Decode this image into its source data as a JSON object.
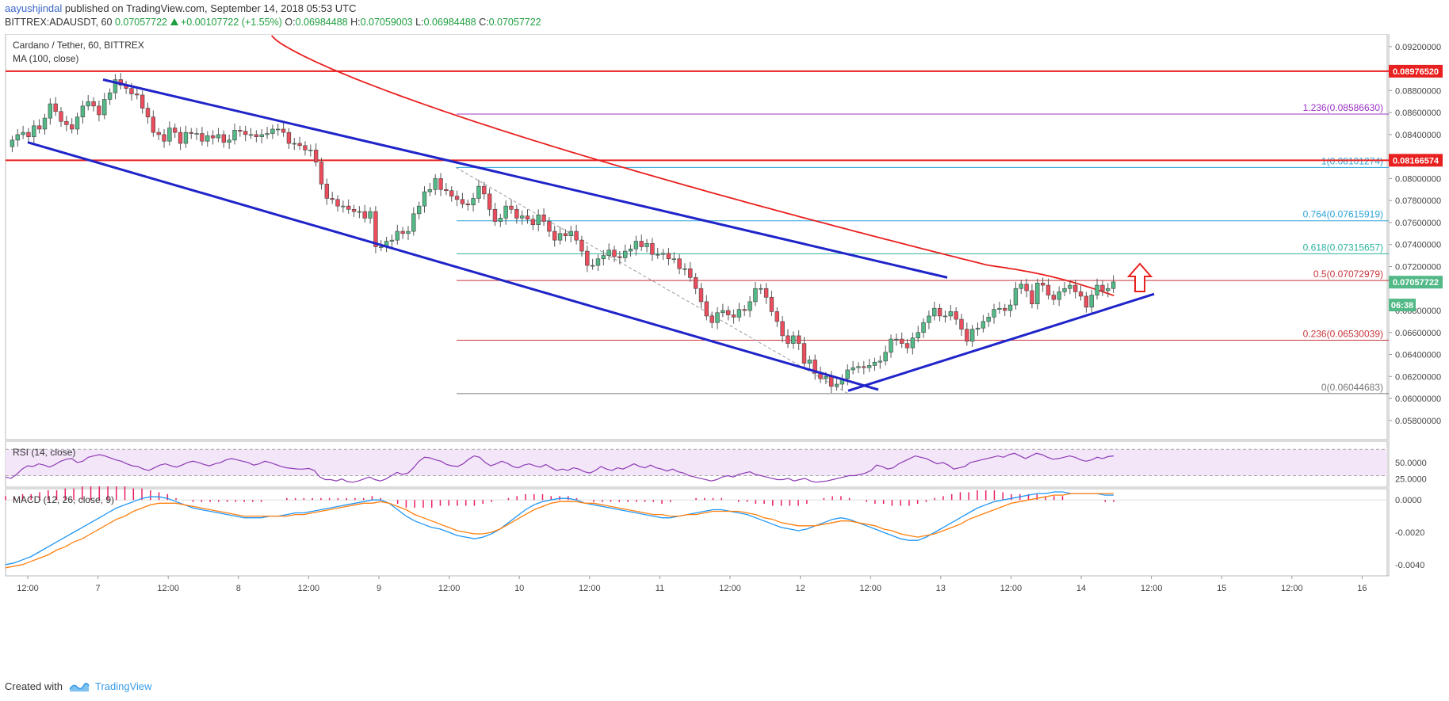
{
  "header": {
    "user": "aayushjindal",
    "published": "published on TradingView.com, September 14, 2018 05:53 UTC",
    "symbol": "BITTREX:ADAUSDT, 60",
    "last": "0.07057722",
    "change": "+0.00107722 (+1.55%)",
    "o_label": "O:",
    "o_val": "0.06984488",
    "h_label": "H:",
    "h_val": "0.07059003",
    "l_label": "L:",
    "l_val": "0.06984488",
    "c_label": "C:",
    "c_val": "0.07057722"
  },
  "footer": {
    "created": "Created with",
    "brand": "TradingView"
  },
  "colors": {
    "up": "#53b987",
    "down": "#eb4d5c",
    "ma": "#e8201f",
    "channel": "#1f24c9",
    "resistance": "#e8201f",
    "fib_purple": "#9b34c4",
    "fib_blue": "#2ea3d9",
    "fib_teal": "#2bb3a0",
    "fib_red": "#c8353b",
    "fib_gray": "#777777",
    "rsi_fill": "#f3e6f9",
    "rsi_line": "#8e3ab5",
    "macd": "#2196f3",
    "signal": "#ff7f0e",
    "hist": "#e91e63",
    "target_arrow": "#e8201f"
  },
  "chart_data": {
    "type": "candlestick",
    "title": "Cardano / Tether, 60, BITTREX",
    "indicator_label": "MA (100, close)",
    "x_ticks": [
      "12:00",
      "7",
      "12:00",
      "8",
      "12:00",
      "9",
      "12:00",
      "10",
      "12:00",
      "11",
      "12:00",
      "12",
      "12:00",
      "13",
      "12:00",
      "14",
      "12:00",
      "15",
      "12:00",
      "16"
    ],
    "y_ticks": [
      "0.09200000",
      "0.08800000",
      "0.08600000",
      "0.08400000",
      "0.08000000",
      "0.07800000",
      "0.07600000",
      "0.07400000",
      "0.07200000",
      "0.06800000",
      "0.06600000",
      "0.06400000",
      "0.06200000",
      "0.06000000",
      "0.05800000"
    ],
    "y_tick_values": [
      0.092,
      0.088,
      0.086,
      0.084,
      0.08,
      0.078,
      0.076,
      0.074,
      0.072,
      0.068,
      0.066,
      0.064,
      0.062,
      0.06,
      0.058
    ],
    "ylim": [
      0.0564,
      0.093
    ],
    "price_badges": [
      {
        "label": "0.08976520",
        "value": 0.0897652,
        "color": "#e8201f"
      },
      {
        "label": "0.08166574",
        "value": 0.08166574,
        "color": "#e8201f"
      },
      {
        "label": "0.07057722",
        "value": 0.07057722,
        "color": "#53b987"
      },
      {
        "label": "06:38",
        "value": 0.0685,
        "color": "#53b987"
      }
    ],
    "resistance_levels": [
      0.0897652,
      0.08166574
    ],
    "fib_levels": [
      {
        "label": "1.236(0.08586630)",
        "value": 0.0858663,
        "color": "#9b34c4"
      },
      {
        "label": "1(0.08101274)",
        "value": 0.08101274,
        "color": "#2ea3d9"
      },
      {
        "label": "0.764(0.07615919)",
        "value": 0.07615919,
        "color": "#2ea3d9"
      },
      {
        "label": "0.618(0.07315657)",
        "value": 0.07315657,
        "color": "#2bb3a0"
      },
      {
        "label": "0.5(0.07072979)",
        "value": 0.07072979,
        "color": "#c8353b"
      },
      {
        "label": "0.236(0.06530039)",
        "value": 0.06530039,
        "color": "#c8353b"
      },
      {
        "label": "0(0.06044683)",
        "value": 0.06044683,
        "color": "#777777"
      }
    ],
    "candle_closes": [
      0.0835,
      0.084,
      0.0842,
      0.0838,
      0.0848,
      0.0845,
      0.0855,
      0.0868,
      0.0861,
      0.0852,
      0.0849,
      0.0845,
      0.0856,
      0.0866,
      0.087,
      0.0866,
      0.0858,
      0.0872,
      0.0878,
      0.089,
      0.0885,
      0.0882,
      0.0877,
      0.0876,
      0.0864,
      0.0856,
      0.0842,
      0.084,
      0.0834,
      0.0846,
      0.0842,
      0.0832,
      0.0842,
      0.0841,
      0.0841,
      0.0834,
      0.0839,
      0.0837,
      0.084,
      0.0833,
      0.0835,
      0.0844,
      0.0843,
      0.084,
      0.084,
      0.0838,
      0.084,
      0.0841,
      0.0845,
      0.0845,
      0.0842,
      0.0832,
      0.0832,
      0.083,
      0.0826,
      0.0826,
      0.0815,
      0.0795,
      0.0782,
      0.0781,
      0.0775,
      0.0775,
      0.0772,
      0.077,
      0.077,
      0.0764,
      0.077,
      0.0738,
      0.0738,
      0.0743,
      0.0744,
      0.0752,
      0.075,
      0.0752,
      0.0768,
      0.0775,
      0.0788,
      0.079,
      0.08,
      0.079,
      0.0789,
      0.0784,
      0.0781,
      0.0777,
      0.0776,
      0.0782,
      0.0793,
      0.0786,
      0.0772,
      0.0761,
      0.0764,
      0.0775,
      0.0772,
      0.0764,
      0.0766,
      0.0763,
      0.0758,
      0.0767,
      0.0761,
      0.0752,
      0.0744,
      0.075,
      0.0748,
      0.0752,
      0.0744,
      0.0734,
      0.0721,
      0.0721,
      0.0727,
      0.073,
      0.0735,
      0.0729,
      0.0728,
      0.0734,
      0.0736,
      0.0743,
      0.0738,
      0.0741,
      0.0731,
      0.0731,
      0.0732,
      0.0727,
      0.0727,
      0.0718,
      0.0718,
      0.071,
      0.07,
      0.0688,
      0.0675,
      0.0669,
      0.0678,
      0.068,
      0.0676,
      0.0674,
      0.0681,
      0.068,
      0.0688,
      0.07,
      0.07,
      0.0692,
      0.0679,
      0.067,
      0.0657,
      0.065,
      0.0657,
      0.065,
      0.0632,
      0.0635,
      0.0623,
      0.0618,
      0.062,
      0.0611,
      0.0613,
      0.0618,
      0.0626,
      0.0628,
      0.0629,
      0.0628,
      0.063,
      0.0633,
      0.0634,
      0.0642,
      0.0654,
      0.0654,
      0.065,
      0.0646,
      0.0655,
      0.066,
      0.0669,
      0.0675,
      0.0682,
      0.0675,
      0.0675,
      0.0679,
      0.0672,
      0.0663,
      0.0652,
      0.0663,
      0.0664,
      0.067,
      0.0674,
      0.0681,
      0.0682,
      0.068,
      0.0685,
      0.07,
      0.0704,
      0.0698,
      0.0686,
      0.0705,
      0.0703,
      0.0694,
      0.069,
      0.0697,
      0.07,
      0.0703,
      0.0697,
      0.0693,
      0.0683,
      0.0694,
      0.0703,
      0.0698,
      0.07,
      0.0706
    ],
    "channel_upper": [
      [
        0.089,
        0.071
      ]
    ],
    "channel_lower": [
      [
        0.0833,
        0.0608
      ]
    ],
    "support_line": [
      [
        0.0607,
        0.0695
      ]
    ],
    "rsi": {
      "label": "RSI (14, close)",
      "ticks": [
        "50.0000",
        "25.0000"
      ],
      "tick_values": [
        50,
        25
      ],
      "bands": [
        30,
        70
      ],
      "ylim": [
        15,
        80
      ],
      "values": [
        28,
        26,
        32,
        40,
        45,
        44,
        48,
        46,
        43,
        47,
        52,
        55,
        56,
        50,
        52,
        58,
        60,
        62,
        60,
        57,
        54,
        52,
        48,
        45,
        44,
        40,
        38,
        42,
        46,
        48,
        45,
        43,
        46,
        50,
        52,
        50,
        47,
        45,
        48,
        50,
        54,
        56,
        54,
        52,
        50,
        46,
        48,
        52,
        50,
        47,
        44,
        42,
        41,
        40,
        40,
        41,
        38,
        28,
        24,
        24,
        22,
        25,
        21,
        20,
        22,
        25,
        28,
        24,
        22,
        25,
        30,
        35,
        32,
        34,
        42,
        52,
        58,
        57,
        54,
        52,
        47,
        45,
        44,
        48,
        55,
        60,
        58,
        50,
        45,
        48,
        52,
        49,
        44,
        42,
        46,
        48,
        45,
        43,
        47,
        42,
        38,
        40,
        38,
        42,
        40,
        36,
        34,
        38,
        44,
        40,
        38,
        42,
        40,
        44,
        48,
        44,
        42,
        46,
        42,
        40,
        37,
        40,
        36,
        34,
        30,
        28,
        26,
        24,
        22,
        24,
        28,
        30,
        28,
        32,
        34,
        36,
        32,
        30,
        28,
        26,
        24,
        24,
        26,
        22,
        24,
        26,
        22,
        20,
        21,
        22,
        24,
        26,
        28,
        30,
        30,
        32,
        34,
        38,
        46,
        44,
        40,
        42,
        48,
        52,
        56,
        60,
        58,
        56,
        52,
        48,
        50,
        46,
        40,
        42,
        44,
        50,
        52,
        54,
        56,
        58,
        60,
        58,
        62,
        64,
        60,
        56,
        60,
        64,
        62,
        58,
        55,
        56,
        58,
        60,
        58,
        54,
        52,
        54,
        58,
        56,
        59,
        60
      ]
    },
    "macd": {
      "label": "MACD (12, 26, close, 9)",
      "ticks": [
        "0.0000",
        "-0.0020",
        "-0.0040"
      ],
      "tick_values": [
        0.0,
        -0.002,
        -0.004
      ],
      "ylim": [
        -0.0046,
        0.0006
      ],
      "macd_values": [
        -0.004,
        -0.0039,
        -0.0037,
        -0.0035,
        -0.0032,
        -0.0029,
        -0.0026,
        -0.0023,
        -0.002,
        -0.0017,
        -0.0014,
        -0.0011,
        -0.0008,
        -0.0005,
        -0.0003,
        -0.0001,
        0.0001,
        0.0002,
        0.0002,
        0.0001,
        -0.0001,
        -0.0003,
        -0.0005,
        -0.0006,
        -0.0007,
        -0.0008,
        -0.0009,
        -0.001,
        -0.0011,
        -0.0011,
        -0.0011,
        -0.001,
        -0.001,
        -0.0009,
        -0.0008,
        -0.0008,
        -0.0007,
        -0.0006,
        -0.0005,
        -0.0004,
        -0.0003,
        -0.0002,
        -0.0001,
        0.0,
        0.0,
        -0.0002,
        -0.0006,
        -0.001,
        -0.0013,
        -0.0015,
        -0.0017,
        -0.0018,
        -0.002,
        -0.0022,
        -0.0023,
        -0.0024,
        -0.0023,
        -0.0021,
        -0.0018,
        -0.0014,
        -0.001,
        -0.0006,
        -0.0003,
        -0.0001,
        0.0,
        0.0001,
        0.0001,
        0.0,
        -0.0002,
        -0.0003,
        -0.0004,
        -0.0005,
        -0.0006,
        -0.0007,
        -0.0008,
        -0.0009,
        -0.001,
        -0.0011,
        -0.0011,
        -0.001,
        -0.0009,
        -0.0008,
        -0.0007,
        -0.0006,
        -0.0006,
        -0.0007,
        -0.0008,
        -0.0009,
        -0.0011,
        -0.0013,
        -0.0015,
        -0.0017,
        -0.0018,
        -0.0019,
        -0.0018,
        -0.0016,
        -0.0014,
        -0.0012,
        -0.0011,
        -0.0012,
        -0.0014,
        -0.0016,
        -0.0018,
        -0.002,
        -0.0022,
        -0.0024,
        -0.0025,
        -0.0025,
        -0.0023,
        -0.002,
        -0.0017,
        -0.0014,
        -0.0011,
        -0.0008,
        -0.0005,
        -0.0003,
        -0.0001,
        0.0,
        0.0001,
        0.0002,
        0.0003,
        0.0004,
        0.0004,
        0.0005,
        0.0005,
        0.0004,
        0.0004,
        0.0004,
        0.0004,
        0.0003,
        0.0003
      ],
      "signal_values": [
        -0.0042,
        -0.0041,
        -0.004,
        -0.0038,
        -0.0036,
        -0.0034,
        -0.0031,
        -0.0029,
        -0.0026,
        -0.0024,
        -0.0021,
        -0.0018,
        -0.0015,
        -0.0012,
        -0.001,
        -0.0007,
        -0.0005,
        -0.0003,
        -0.0002,
        -0.0002,
        -0.0002,
        -0.0003,
        -0.0004,
        -0.0005,
        -0.0006,
        -0.0007,
        -0.0008,
        -0.0009,
        -0.001,
        -0.001,
        -0.001,
        -0.001,
        -0.001,
        -0.001,
        -0.0009,
        -0.0009,
        -0.0008,
        -0.0007,
        -0.0006,
        -0.0005,
        -0.0004,
        -0.0003,
        -0.0002,
        -0.0002,
        -0.0001,
        -0.0002,
        -0.0004,
        -0.0006,
        -0.0009,
        -0.0011,
        -0.0013,
        -0.0015,
        -0.0017,
        -0.0019,
        -0.002,
        -0.0021,
        -0.0021,
        -0.002,
        -0.0018,
        -0.0015,
        -0.0012,
        -0.0009,
        -0.0006,
        -0.0004,
        -0.0002,
        -0.0001,
        -0.0001,
        -0.0001,
        -0.0002,
        -0.0002,
        -0.0003,
        -0.0004,
        -0.0005,
        -0.0006,
        -0.0007,
        -0.0008,
        -0.0009,
        -0.0009,
        -0.001,
        -0.001,
        -0.0009,
        -0.0009,
        -0.0008,
        -0.0007,
        -0.0007,
        -0.0007,
        -0.0007,
        -0.0008,
        -0.0009,
        -0.0011,
        -0.0012,
        -0.0014,
        -0.0015,
        -0.0016,
        -0.0016,
        -0.0016,
        -0.0015,
        -0.0014,
        -0.0013,
        -0.0013,
        -0.0014,
        -0.0015,
        -0.0016,
        -0.0018,
        -0.0019,
        -0.0021,
        -0.0022,
        -0.0023,
        -0.0022,
        -0.0021,
        -0.0019,
        -0.0017,
        -0.0015,
        -0.0012,
        -0.001,
        -0.0008,
        -0.0006,
        -0.0004,
        -0.0002,
        -0.0001,
        0.0,
        0.0001,
        0.0002,
        0.0003,
        0.0003,
        0.0004,
        0.0004,
        0.0004,
        0.0004,
        0.0004,
        0.0004
      ]
    }
  }
}
